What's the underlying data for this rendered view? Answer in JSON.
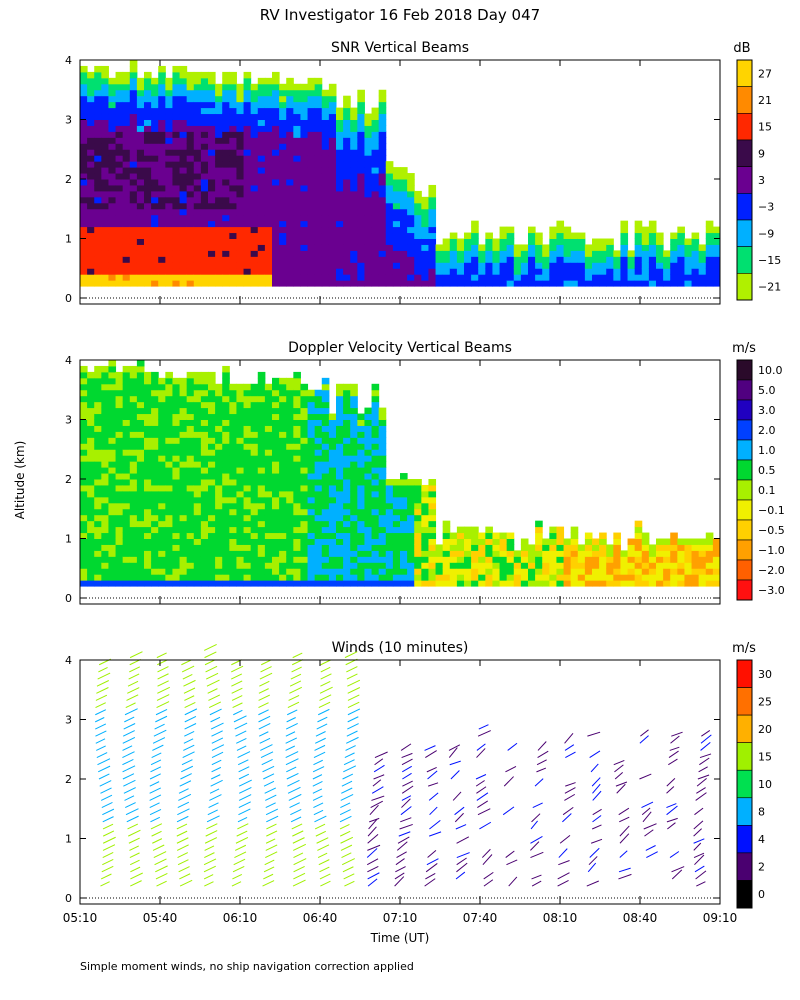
{
  "figure": {
    "title": "RV Investigator  16 Feb 2018 Day 047",
    "ylabel": "Altitude (km)",
    "xlabel": "Time (UT)",
    "footnote": "Simple moment winds, no ship navigation correction applied"
  },
  "chart_data": [
    {
      "type": "heatmap",
      "title": "SNR Vertical Beams",
      "colorbar_unit": "dB",
      "colorbar_ticks": [
        "27",
        "21",
        "15",
        "9",
        "3",
        "−3",
        "−9",
        "−15",
        "−21"
      ],
      "colors": [
        "#ffd400",
        "#ff8a00",
        "#ff2800",
        "#3a0a4a",
        "#6a0090",
        "#0020ff",
        "#00b0ff",
        "#00e070",
        "#b0f000"
      ],
      "y_ticks": [
        "0",
        "1",
        "2",
        "3",
        "4"
      ],
      "ylim": [
        0,
        4
      ],
      "x_ticks": [
        "05:10",
        "05:40",
        "06:10",
        "06:40",
        "07:10",
        "07:40",
        "08:10",
        "08:40",
        "09:10"
      ]
    },
    {
      "type": "heatmap",
      "title": "Doppler Velocity Vertical Beams",
      "colorbar_unit": "m/s",
      "colorbar_ticks": [
        "10.0",
        "5.0",
        "3.0",
        "2.0",
        "1.0",
        "0.5",
        "0.1",
        "−0.1",
        "−0.5",
        "−1.0",
        "−2.0",
        "−3.0"
      ],
      "colors": [
        "#2a0a2a",
        "#500080",
        "#2000c0",
        "#0040ff",
        "#00b0ff",
        "#00d830",
        "#a8f000",
        "#f0f000",
        "#ffd000",
        "#ffa000",
        "#ff6000",
        "#ff1010"
      ],
      "y_ticks": [
        "0",
        "1",
        "2",
        "3",
        "4"
      ],
      "ylim": [
        0,
        4
      ],
      "x_ticks": [
        "05:10",
        "05:40",
        "06:10",
        "06:40",
        "07:10",
        "07:40",
        "08:10",
        "08:40",
        "09:10"
      ]
    },
    {
      "type": "scatter",
      "title": "Winds (10 minutes)",
      "colorbar_unit": "m/s",
      "colorbar_ticks": [
        "30",
        "25",
        "20",
        "15",
        "10",
        "8",
        "4",
        "2",
        "0"
      ],
      "colors": [
        "#ff1000",
        "#ff7000",
        "#ffb000",
        "#a0f000",
        "#00e050",
        "#00b0ff",
        "#0010ff",
        "#4a0070",
        "#000000"
      ],
      "y_ticks": [
        "0",
        "1",
        "2",
        "3",
        "4"
      ],
      "ylim": [
        0,
        4
      ],
      "x_ticks": [
        "05:10",
        "05:40",
        "06:10",
        "06:40",
        "07:10",
        "07:40",
        "08:10",
        "08:40",
        "09:10"
      ]
    }
  ]
}
